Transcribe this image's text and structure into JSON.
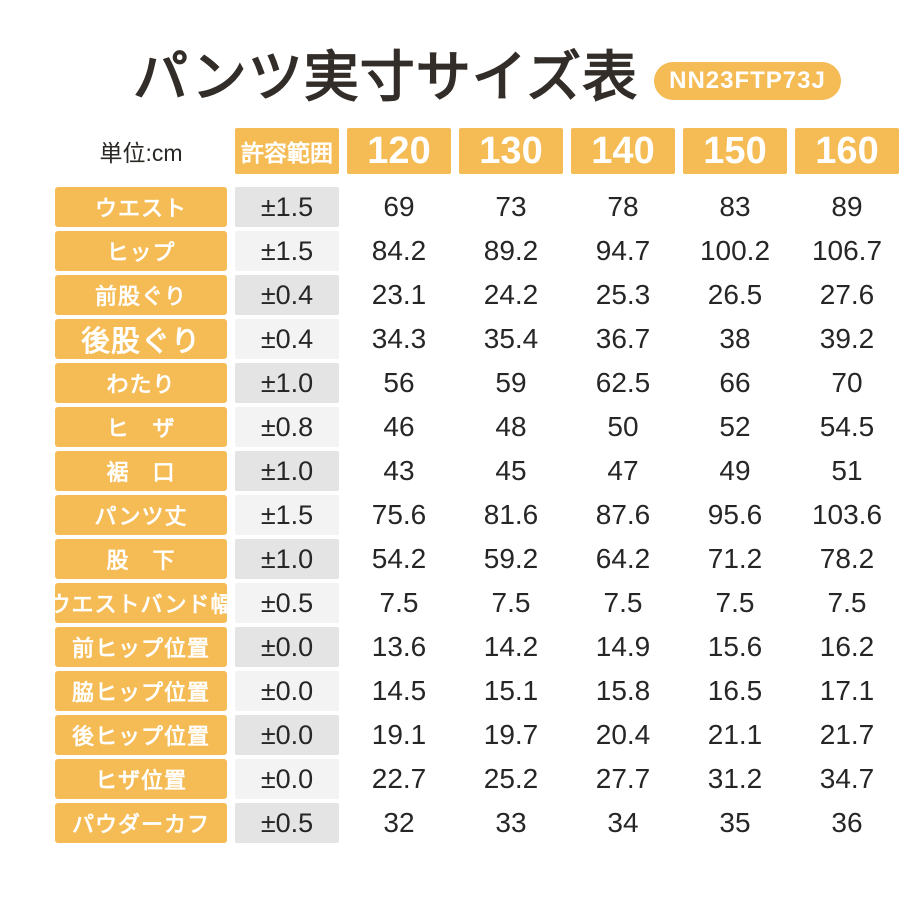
{
  "title": "パンツ実寸サイズ表",
  "model_badge": "NN23FTP73J",
  "unit_label": "単位:cm",
  "colors": {
    "accent_orange": "#f5bb54",
    "tolerance_row_dark": "#e4e4e4",
    "tolerance_row_light": "#f3f3f3",
    "header_text": "#ffffff",
    "body_text": "#262626",
    "title_text": "#322d28"
  },
  "table": {
    "tolerance_header": "許容範囲",
    "size_headers": [
      "120",
      "130",
      "140",
      "150",
      "160"
    ],
    "rows": [
      {
        "label": "ウエスト",
        "tolerance": "±1.5",
        "values": [
          "69",
          "73",
          "78",
          "83",
          "89"
        ]
      },
      {
        "label": "ヒップ",
        "tolerance": "±1.5",
        "values": [
          "84.2",
          "89.2",
          "94.7",
          "100.2",
          "106.7"
        ]
      },
      {
        "label": "前股ぐり",
        "tolerance": "±0.4",
        "values": [
          "23.1",
          "24.2",
          "25.3",
          "26.5",
          "27.6"
        ]
      },
      {
        "label": "後股ぐり",
        "tolerance": "±0.4",
        "values": [
          "34.3",
          "35.4",
          "36.7",
          "38",
          "39.2"
        ],
        "large_label": true
      },
      {
        "label": "わたり",
        "tolerance": "±1.0",
        "values": [
          "56",
          "59",
          "62.5",
          "66",
          "70"
        ]
      },
      {
        "label": "ヒ　ザ",
        "tolerance": "±0.8",
        "values": [
          "46",
          "48",
          "50",
          "52",
          "54.5"
        ]
      },
      {
        "label": "裾　口",
        "tolerance": "±1.0",
        "values": [
          "43",
          "45",
          "47",
          "49",
          "51"
        ]
      },
      {
        "label": "パンツ丈",
        "tolerance": "±1.5",
        "values": [
          "75.6",
          "81.6",
          "87.6",
          "95.6",
          "103.6"
        ]
      },
      {
        "label": "股　下",
        "tolerance": "±1.0",
        "values": [
          "54.2",
          "59.2",
          "64.2",
          "71.2",
          "78.2"
        ]
      },
      {
        "label": "ウエストバンド幅",
        "tolerance": "±0.5",
        "values": [
          "7.5",
          "7.5",
          "7.5",
          "7.5",
          "7.5"
        ]
      },
      {
        "label": "前ヒップ位置",
        "tolerance": "±0.0",
        "values": [
          "13.6",
          "14.2",
          "14.9",
          "15.6",
          "16.2"
        ]
      },
      {
        "label": "脇ヒップ位置",
        "tolerance": "±0.0",
        "values": [
          "14.5",
          "15.1",
          "15.8",
          "16.5",
          "17.1"
        ]
      },
      {
        "label": "後ヒップ位置",
        "tolerance": "±0.0",
        "values": [
          "19.1",
          "19.7",
          "20.4",
          "21.1",
          "21.7"
        ]
      },
      {
        "label": "ヒザ位置",
        "tolerance": "±0.0",
        "values": [
          "22.7",
          "25.2",
          "27.7",
          "31.2",
          "34.7"
        ]
      },
      {
        "label": "パウダーカフ",
        "tolerance": "±0.5",
        "values": [
          "32",
          "33",
          "34",
          "35",
          "36"
        ]
      }
    ]
  }
}
